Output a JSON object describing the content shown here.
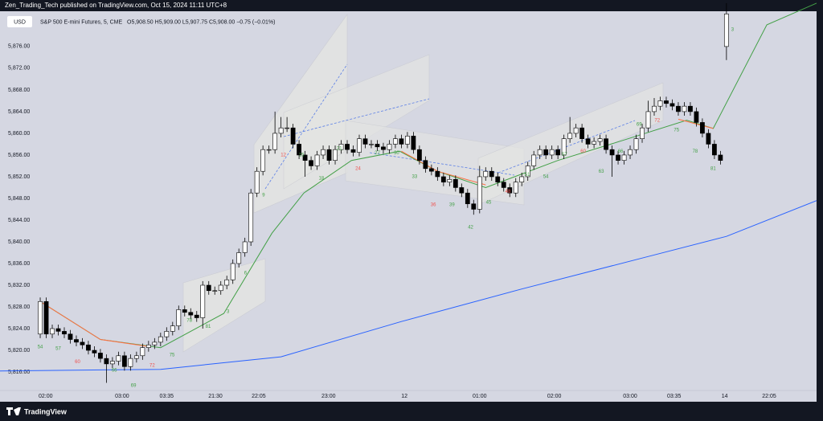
{
  "header": {
    "publisher": "Zen_Trading_Tech published on TradingView.com, Oct 15, 2024 11:11 UTC+8",
    "currency": "USD",
    "symbol": "S&P 500 E-mini Futures, 5, CME",
    "quote": "O5,908.50 H5,909.00 L5,907.75 C5,908.00 −0.75 (−0.01%)"
  },
  "footer": {
    "brand": "TradingView"
  },
  "chart_data": {
    "type": "candlestick",
    "up_color": "#ffffff",
    "down_color": "#000000",
    "ylim": [
      5812.6,
      5882.5
    ],
    "yticks": [
      {
        "value": 5816,
        "label": "5,816.00"
      },
      {
        "value": 5820,
        "label": "5,820.00"
      },
      {
        "value": 5824,
        "label": "5,824.00"
      },
      {
        "value": 5828,
        "label": "5,828.00"
      },
      {
        "value": 5832,
        "label": "5,832.00"
      },
      {
        "value": 5836,
        "label": "5,836.00"
      },
      {
        "value": 5840,
        "label": "5,840.00"
      },
      {
        "value": 5844,
        "label": "5,844.00"
      },
      {
        "value": 5848,
        "label": "5,848.00"
      },
      {
        "value": 5852,
        "label": "5,852.00"
      },
      {
        "value": 5856,
        "label": "5,856.00"
      },
      {
        "value": 5860,
        "label": "5,860.00"
      },
      {
        "value": 5864,
        "label": "5,864.00"
      },
      {
        "value": 5868,
        "label": "5,868.00"
      },
      {
        "value": 5872,
        "label": "5,872.00"
      },
      {
        "value": 5876,
        "label": "5,876.00"
      }
    ],
    "xlim": [
      -6.68,
      128.97
    ],
    "xticks": [
      {
        "value": 0.9,
        "label": "02:00"
      },
      {
        "value": 13.6,
        "label": "03:00"
      },
      {
        "value": 21.0,
        "label": "03:35"
      },
      {
        "value": 29.1,
        "label": "21:30"
      },
      {
        "value": 36.3,
        "label": "22:05"
      },
      {
        "value": 47.9,
        "label": "23:00"
      },
      {
        "value": 60.5,
        "label": "12"
      },
      {
        "value": 73.0,
        "label": "01:00"
      },
      {
        "value": 85.4,
        "label": "02:00"
      },
      {
        "value": 98.0,
        "label": "03:00"
      },
      {
        "value": 105.3,
        "label": "03:35"
      },
      {
        "value": 113.7,
        "label": "14"
      },
      {
        "value": 121.1,
        "label": "22:05"
      }
    ],
    "grid": false,
    "ohlc": [
      [
        5823,
        5829.75,
        5822.25,
        5829
      ],
      [
        5829,
        5829.75,
        5822.25,
        5823
      ],
      [
        5823,
        5824.75,
        5822.25,
        5824
      ],
      [
        5824,
        5824.75,
        5822.75,
        5823.5
      ],
      [
        5823.5,
        5824.25,
        5822.25,
        5823
      ],
      [
        5823,
        5823.75,
        5821.25,
        5822
      ],
      [
        5822,
        5822.75,
        5820.75,
        5821.5
      ],
      [
        5821.5,
        5822.25,
        5820.25,
        5821
      ],
      [
        5821,
        5821.75,
        5819.25,
        5820
      ],
      [
        5820,
        5820.75,
        5818.75,
        5819.5
      ],
      [
        5819.5,
        5820.25,
        5817.75,
        5818.5
      ],
      [
        5818.5,
        5819.25,
        5814,
        5817.5
      ],
      [
        5817.5,
        5818.75,
        5816.75,
        5818
      ],
      [
        5818,
        5819.75,
        5817.25,
        5819
      ],
      [
        5819,
        5819.75,
        5816.25,
        5817
      ],
      [
        5817,
        5819.25,
        5816.25,
        5818.5
      ],
      [
        5818.5,
        5819.75,
        5817.75,
        5819
      ],
      [
        5819,
        5821.25,
        5818.25,
        5820.5
      ],
      [
        5820.5,
        5821.75,
        5819.75,
        5821
      ],
      [
        5821,
        5822.25,
        5820.25,
        5821.5
      ],
      [
        5821.5,
        5823.25,
        5820.75,
        5822.5
      ],
      [
        5822.5,
        5824.25,
        5821.75,
        5823.5
      ],
      [
        5823.5,
        5825.25,
        5822.75,
        5824.5
      ],
      [
        5824.5,
        5828.25,
        5823.75,
        5827.5
      ],
      [
        5827.5,
        5828.25,
        5826.25,
        5827
      ],
      [
        5827,
        5827.75,
        5825.75,
        5826.5
      ],
      [
        5826.5,
        5827.25,
        5825.25,
        5826
      ],
      [
        5826,
        5832.75,
        5824,
        5832
      ],
      [
        5832,
        5832.75,
        5830.25,
        5831
      ],
      [
        5831,
        5831.75,
        5830.25,
        5831
      ],
      [
        5831,
        5832.75,
        5830.25,
        5832
      ],
      [
        5832,
        5833.75,
        5831.25,
        5833
      ],
      [
        5833,
        5836.75,
        5832.25,
        5836
      ],
      [
        5836,
        5838.75,
        5835.25,
        5838
      ],
      [
        5838,
        5840.75,
        5837.25,
        5840
      ],
      [
        5840,
        5849.75,
        5839.25,
        5849
      ],
      [
        5849,
        5853.75,
        5848.25,
        5853
      ],
      [
        5853,
        5857.75,
        5852.25,
        5857
      ],
      [
        5857,
        5857.75,
        5856.25,
        5857
      ],
      [
        5857,
        5864,
        5856.25,
        5860
      ],
      [
        5860,
        5863,
        5859.25,
        5861
      ],
      [
        5861,
        5863,
        5860.25,
        5861
      ],
      [
        5861,
        5861.75,
        5857.25,
        5858
      ],
      [
        5858,
        5858.75,
        5855.25,
        5856
      ],
      [
        5856,
        5856.75,
        5852,
        5855
      ],
      [
        5855,
        5855.75,
        5853.25,
        5854
      ],
      [
        5854,
        5856.75,
        5853.25,
        5856
      ],
      [
        5856,
        5857.75,
        5855.25,
        5857
      ],
      [
        5857,
        5857.75,
        5854.25,
        5855
      ],
      [
        5855,
        5857.75,
        5854.25,
        5857
      ],
      [
        5857,
        5858.75,
        5856.25,
        5858
      ],
      [
        5858,
        5858.75,
        5856.25,
        5857
      ],
      [
        5857,
        5857.75,
        5855.75,
        5856.5
      ],
      [
        5856.5,
        5859.75,
        5855.75,
        5859
      ],
      [
        5859,
        5859.75,
        5857.25,
        5858
      ],
      [
        5858,
        5858.75,
        5857.25,
        5858
      ],
      [
        5858,
        5858.75,
        5856.75,
        5857.5
      ],
      [
        5857.5,
        5858.25,
        5856.25,
        5857
      ],
      [
        5857,
        5858.75,
        5856.25,
        5858
      ],
      [
        5858,
        5859.75,
        5857.25,
        5859
      ],
      [
        5859,
        5859.75,
        5857.25,
        5858
      ],
      [
        5858,
        5860.25,
        5857.25,
        5859.5
      ],
      [
        5859.5,
        5860.25,
        5856.25,
        5857
      ],
      [
        5857,
        5857.75,
        5854.25,
        5855
      ],
      [
        5855,
        5855.75,
        5852.75,
        5853.5
      ],
      [
        5853.5,
        5854.25,
        5852.25,
        5853
      ],
      [
        5853,
        5853.75,
        5851.25,
        5852
      ],
      [
        5852,
        5852.75,
        5850.25,
        5851
      ],
      [
        5851,
        5852.25,
        5850.25,
        5851.5
      ],
      [
        5851.5,
        5852.25,
        5849.25,
        5850
      ],
      [
        5850,
        5850.75,
        5848.25,
        5849
      ],
      [
        5849,
        5849.75,
        5846.25,
        5847
      ],
      [
        5847,
        5847.75,
        5845,
        5846
      ],
      [
        5846,
        5854,
        5845.25,
        5852
      ],
      [
        5852,
        5853.75,
        5851.25,
        5853
      ],
      [
        5853,
        5853.75,
        5851.25,
        5852
      ],
      [
        5852,
        5852.75,
        5850.25,
        5851
      ],
      [
        5851,
        5851.75,
        5849.25,
        5850
      ],
      [
        5850,
        5850.75,
        5848.25,
        5849
      ],
      [
        5849,
        5851.75,
        5848.25,
        5851
      ],
      [
        5851,
        5852.75,
        5850.25,
        5852
      ],
      [
        5852,
        5854.75,
        5851.25,
        5854
      ],
      [
        5854,
        5856.75,
        5853.25,
        5856
      ],
      [
        5856,
        5857.75,
        5855.25,
        5857
      ],
      [
        5857,
        5857.75,
        5855.25,
        5856
      ],
      [
        5856,
        5857.75,
        5855.25,
        5857
      ],
      [
        5857,
        5857.75,
        5855.25,
        5856
      ],
      [
        5856,
        5859.75,
        5855.25,
        5859
      ],
      [
        5859,
        5863,
        5858.25,
        5860
      ],
      [
        5860,
        5861.75,
        5859.25,
        5861
      ],
      [
        5861,
        5861.75,
        5858.25,
        5859
      ],
      [
        5859,
        5859.75,
        5857.25,
        5858
      ],
      [
        5858,
        5859.25,
        5857.25,
        5858.5
      ],
      [
        5858.5,
        5859.75,
        5857.75,
        5859
      ],
      [
        5859,
        5859.75,
        5856.25,
        5857
      ],
      [
        5857,
        5857.75,
        5852,
        5856
      ],
      [
        5856,
        5856.75,
        5854.25,
        5855
      ],
      [
        5855,
        5856.75,
        5854.25,
        5856
      ],
      [
        5856,
        5857.75,
        5855.25,
        5857
      ],
      [
        5857,
        5859.75,
        5856.25,
        5859
      ],
      [
        5859,
        5861.75,
        5858.25,
        5861
      ],
      [
        5861,
        5866,
        5860.25,
        5864
      ],
      [
        5864,
        5866.5,
        5863.25,
        5865
      ],
      [
        5865,
        5866.75,
        5864.25,
        5866
      ],
      [
        5866,
        5866.75,
        5864.75,
        5865.5
      ],
      [
        5865.5,
        5866.25,
        5864.25,
        5865
      ],
      [
        5865,
        5865.75,
        5863.25,
        5864
      ],
      [
        5864,
        5865.75,
        5863.25,
        5865
      ],
      [
        5865,
        5865.75,
        5863.25,
        5864
      ],
      [
        5864,
        5864.75,
        5861.25,
        5862
      ],
      [
        5862,
        5862.75,
        5859.25,
        5860
      ],
      [
        5860,
        5860.75,
        5857.25,
        5858
      ],
      [
        5858,
        5858.75,
        5855.25,
        5856
      ],
      [
        5856,
        5856.75,
        5854.25,
        5855
      ],
      [
        5876,
        5884,
        5873.5,
        5882
      ]
    ],
    "lines": [
      {
        "color": "#2962ff",
        "x": [
          -6.68,
          20,
          40,
          60,
          80,
          100,
          114,
          128.97
        ],
        "y": [
          5816.2,
          5816.5,
          5818.8,
          5825.3,
          5831.3,
          5837,
          5841,
          5847.6
        ]
      },
      {
        "color": "#43a047",
        "x": [
          0,
          10,
          20,
          30.5,
          38.5,
          43.8,
          51.7,
          59.7,
          66,
          74,
          86,
          96.8,
          107.4,
          111.8,
          120.7,
          128.97
        ],
        "y": [
          5829,
          5822,
          5820.5,
          5826.8,
          5841.6,
          5849,
          5855,
          5856.7,
          5853,
          5850,
          5855,
          5858.7,
          5862.4,
          5860.9,
          5880,
          5884
        ]
      },
      {
        "color": "#ff7043",
        "x": [
          0,
          10,
          18,
          40,
          60,
          66,
          74,
          90,
          106,
          111.8
        ],
        "y": [
          5829,
          5822,
          5820.7,
          null,
          5856.7,
          5853,
          5850.5,
          null,
          5862.6,
          5860.9
        ]
      }
    ],
    "annotations": [
      {
        "text": "54",
        "x": 0,
        "y": 5820.6,
        "color": "#43a047"
      },
      {
        "text": "57",
        "x": 3,
        "y": 5820.3,
        "color": "#43a047"
      },
      {
        "text": "60",
        "x": 6.2,
        "y": 5817.9,
        "color": "#ef5350"
      },
      {
        "text": "66",
        "x": 12.3,
        "y": 5816.3,
        "color": "#43a047"
      },
      {
        "text": "69",
        "x": 15.5,
        "y": 5813.5,
        "color": "#43a047"
      },
      {
        "text": "72",
        "x": 18.6,
        "y": 5817.2,
        "color": "#ef5350"
      },
      {
        "text": "75",
        "x": 21.9,
        "y": 5819.1,
        "color": "#43a047"
      },
      {
        "text": "78",
        "x": 24.8,
        "y": 5825.5,
        "color": "#43a047"
      },
      {
        "text": "81",
        "x": 27.9,
        "y": 5824.4,
        "color": "#43a047"
      },
      {
        "text": "3",
        "x": 31.2,
        "y": 5827.1,
        "color": "#43a047"
      },
      {
        "text": "6",
        "x": 34.1,
        "y": 5834.2,
        "color": "#43a047"
      },
      {
        "text": "9",
        "x": 37.1,
        "y": 5848.6,
        "color": "#43a047"
      },
      {
        "text": "12",
        "x": 40.4,
        "y": 5856,
        "color": "#ef5350"
      },
      {
        "text": "15",
        "x": 43.4,
        "y": 5856,
        "color": "#43a047"
      },
      {
        "text": "18",
        "x": 46.7,
        "y": 5851.7,
        "color": "#43a047"
      },
      {
        "text": "21",
        "x": 49.7,
        "y": 5857.2,
        "color": "#43a047"
      },
      {
        "text": "24",
        "x": 52.8,
        "y": 5853.5,
        "color": "#ef5350"
      },
      {
        "text": "27",
        "x": 56,
        "y": 5856.4,
        "color": "#43a047"
      },
      {
        "text": "30",
        "x": 59.2,
        "y": 5856.4,
        "color": "#43a047"
      },
      {
        "text": "33",
        "x": 62.2,
        "y": 5852,
        "color": "#43a047"
      },
      {
        "text": "36",
        "x": 65.3,
        "y": 5846.8,
        "color": "#ef5350"
      },
      {
        "text": "39",
        "x": 68.4,
        "y": 5846.8,
        "color": "#43a047"
      },
      {
        "text": "42",
        "x": 71.5,
        "y": 5842.7,
        "color": "#43a047"
      },
      {
        "text": "45",
        "x": 74.5,
        "y": 5847.3,
        "color": "#43a047"
      },
      {
        "text": "48",
        "x": 77.7,
        "y": 5849.3,
        "color": "#ef5350"
      },
      {
        "text": "51",
        "x": 80.9,
        "y": 5852.4,
        "color": "#43a047"
      },
      {
        "text": "54",
        "x": 84,
        "y": 5852,
        "color": "#43a047"
      },
      {
        "text": "57",
        "x": 87.1,
        "y": 5856.1,
        "color": "#43a047"
      },
      {
        "text": "60",
        "x": 90.2,
        "y": 5856.7,
        "color": "#ef5350"
      },
      {
        "text": "63",
        "x": 93.2,
        "y": 5853,
        "color": "#43a047"
      },
      {
        "text": "66",
        "x": 96.4,
        "y": 5856.7,
        "color": "#43a047"
      },
      {
        "text": "69",
        "x": 99.5,
        "y": 5861.6,
        "color": "#43a047"
      },
      {
        "text": "72",
        "x": 102.5,
        "y": 5862.4,
        "color": "#ef5350"
      },
      {
        "text": "75",
        "x": 105.7,
        "y": 5860.6,
        "color": "#43a047"
      },
      {
        "text": "78",
        "x": 108.8,
        "y": 5856.7,
        "color": "#43a047"
      },
      {
        "text": "81",
        "x": 111.8,
        "y": 5853.5,
        "color": "#43a047"
      },
      {
        "text": "3",
        "x": 115,
        "y": 5879.1,
        "color": "#43a047"
      }
    ]
  }
}
